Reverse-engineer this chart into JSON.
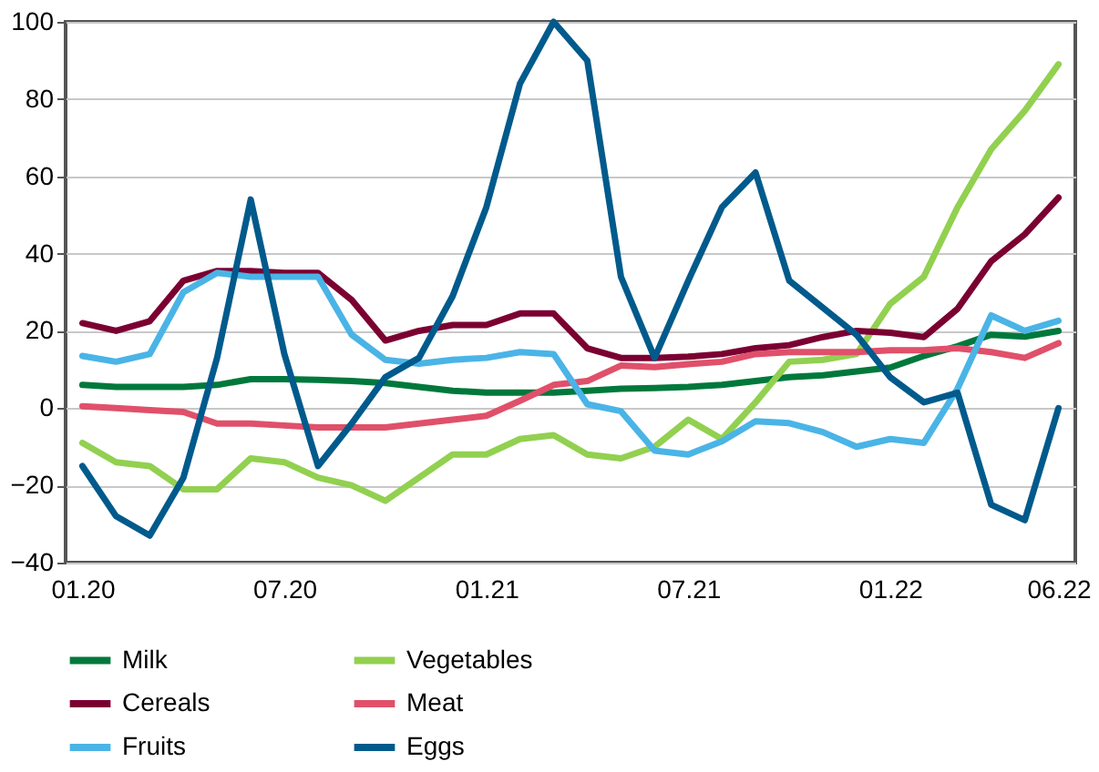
{
  "chart_data": {
    "type": "line",
    "categories": [
      "01.20",
      null,
      null,
      null,
      null,
      null,
      "07.20",
      null,
      null,
      null,
      null,
      null,
      "01.21",
      null,
      null,
      null,
      null,
      null,
      "07.21",
      null,
      null,
      null,
      null,
      null,
      "01.22",
      null,
      null,
      null,
      null,
      "06.22"
    ],
    "series": [
      {
        "name": "Milk",
        "color": "#00783c",
        "values": [
          6,
          5.5,
          5.5,
          5.5,
          6,
          7.5,
          7.5,
          7.3,
          7,
          6.5,
          5.5,
          4.5,
          4,
          4,
          4,
          4.5,
          5,
          5.2,
          5.5,
          6,
          7,
          8,
          8.5,
          9.5,
          10.5,
          13.5,
          16,
          19,
          18.5,
          20
        ]
      },
      {
        "name": "Vegetables",
        "color": "#92d050",
        "values": [
          -9,
          -14,
          -15,
          -21,
          -21,
          -13,
          -14,
          -18,
          -20,
          -24,
          -18,
          -12,
          -12,
          -8,
          -7,
          -12,
          -13,
          -10,
          -3,
          -8,
          1.5,
          12,
          12.5,
          14,
          27,
          34,
          52,
          67,
          77,
          89
        ]
      },
      {
        "name": "Cereals",
        "color": "#7b0032",
        "values": [
          22,
          20,
          22.5,
          33,
          35.5,
          35.5,
          35,
          35,
          28,
          17.5,
          20,
          21.5,
          21.5,
          24.5,
          24.5,
          15.5,
          13,
          13,
          13.3,
          14,
          15.5,
          16.3,
          18.4,
          20,
          19.5,
          18.4,
          25.7,
          38,
          45,
          54.5
        ]
      },
      {
        "name": "Meat",
        "color": "#e0506a",
        "values": [
          0.5,
          0,
          -0.5,
          -1,
          -4,
          -4,
          -4.5,
          -5,
          -5,
          -5,
          -4,
          -3,
          -2,
          1.9,
          6,
          7,
          11,
          10.6,
          11.4,
          12,
          14,
          14.5,
          14.5,
          14.5,
          15,
          15,
          15.5,
          14.5,
          13,
          16.8
        ]
      },
      {
        "name": "Fruits",
        "color": "#4ab4e6",
        "values": [
          13.5,
          12,
          14,
          30,
          35,
          34,
          34,
          34,
          19,
          12.5,
          11.5,
          12.5,
          13,
          14.5,
          14,
          1,
          -0.8,
          -11,
          -12,
          -8.6,
          -3.4,
          -3.9,
          -6.2,
          -10,
          -8,
          -9,
          5,
          24,
          20,
          22.6
        ]
      },
      {
        "name": "Eggs",
        "color": "#005a8c",
        "values": [
          -15,
          -28,
          -33,
          -18,
          13,
          54,
          14,
          -15,
          -4,
          8,
          13,
          29,
          52,
          84,
          100,
          90,
          34,
          13,
          33,
          52,
          61,
          33,
          26,
          19,
          8,
          1.5,
          4,
          -25,
          -29,
          0
        ]
      }
    ],
    "ylim": [
      -40,
      100
    ],
    "yticks": [
      -40,
      -20,
      0,
      20,
      40,
      60,
      80,
      100
    ],
    "grid": "y",
    "legend": "bottom",
    "line_style": "solid",
    "marker": "none"
  }
}
